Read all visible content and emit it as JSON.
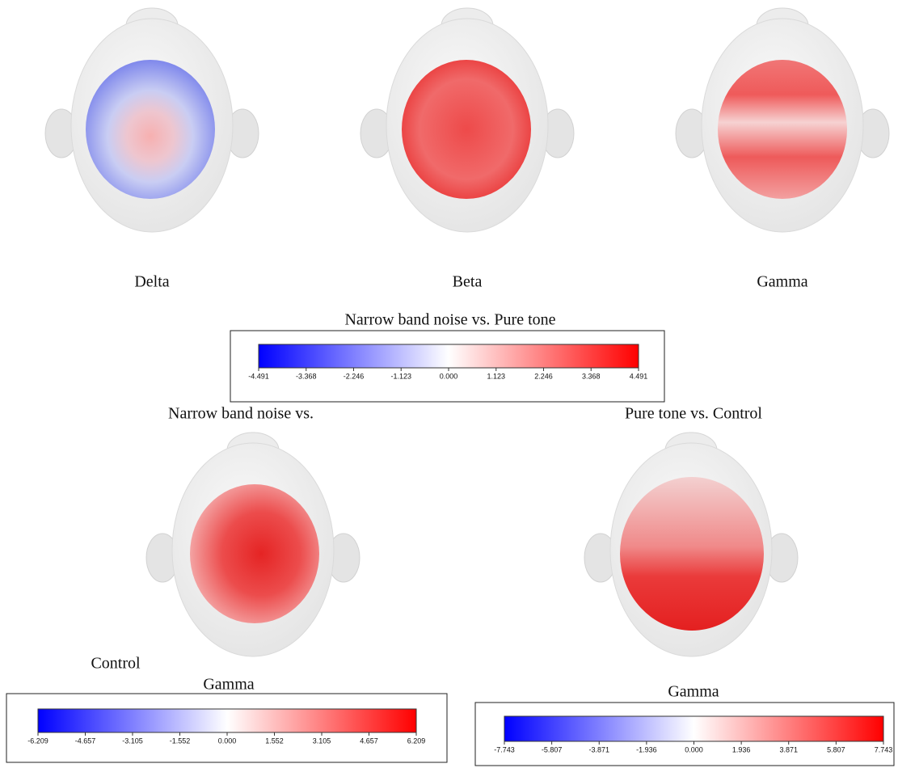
{
  "top_row": {
    "maps": [
      {
        "label": "Delta"
      },
      {
        "label": "Beta"
      },
      {
        "label": "Gamma"
      }
    ],
    "colorbar": {
      "title": "Narrow band noise vs. Pure tone",
      "lim": [
        -4.491,
        4.491
      ],
      "ticks": [
        -4.491,
        -3.368,
        -2.246,
        -1.123,
        {
          "value": 0,
          "label": "0.000"
        },
        1.123,
        2.246,
        3.368,
        4.491
      ]
    }
  },
  "bottom_left": {
    "title_parts": [
      "Narrow band noise vs.",
      "Control"
    ],
    "label": "Gamma",
    "colorbar": {
      "lim": [
        -6.209,
        6.209
      ],
      "ticks": [
        -6.209,
        -4.657,
        -3.105,
        -1.552,
        {
          "value": 0,
          "label": "0.000"
        },
        1.552,
        3.105,
        4.657,
        6.209
      ]
    }
  },
  "bottom_right": {
    "title": "Pure tone vs. Control",
    "label": "Gamma",
    "colorbar": {
      "lim": [
        -7.743,
        7.743
      ],
      "ticks": [
        -7.743,
        -5.807,
        -3.871,
        -1.936,
        {
          "value": 0,
          "label": "0.000"
        },
        1.936,
        3.871,
        5.807,
        7.743
      ]
    }
  }
}
